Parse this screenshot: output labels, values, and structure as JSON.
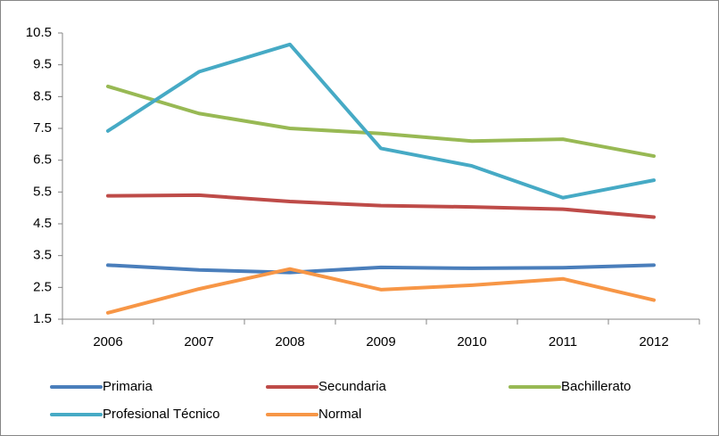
{
  "chart_data": {
    "type": "line",
    "categories": [
      "2006",
      "2007",
      "2008",
      "2009",
      "2010",
      "2011",
      "2012"
    ],
    "series": [
      {
        "name": "Primaria",
        "color": "#4a7ebb",
        "values": [
          3.2,
          3.05,
          2.97,
          3.13,
          3.1,
          3.12,
          3.2
        ]
      },
      {
        "name": "Secundaria",
        "color": "#be4b48",
        "values": [
          5.38,
          5.4,
          5.2,
          5.07,
          5.03,
          4.96,
          4.71
        ]
      },
      {
        "name": "Bachillerato",
        "color": "#98b954",
        "values": [
          8.82,
          7.97,
          7.5,
          7.34,
          7.1,
          7.16,
          6.63
        ]
      },
      {
        "name": "Profesional Técnico",
        "color": "#46aac5",
        "values": [
          7.42,
          9.28,
          10.14,
          6.87,
          6.32,
          5.32,
          5.87
        ]
      },
      {
        "name": "Normal",
        "color": "#f79646",
        "values": [
          1.7,
          2.45,
          3.08,
          2.43,
          2.57,
          2.77,
          2.1
        ]
      }
    ],
    "ylim": [
      1.5,
      10.5
    ],
    "yticks": [
      1.5,
      2.5,
      3.5,
      4.5,
      5.5,
      6.5,
      7.5,
      8.5,
      9.5,
      10.5
    ],
    "grid": false
  }
}
